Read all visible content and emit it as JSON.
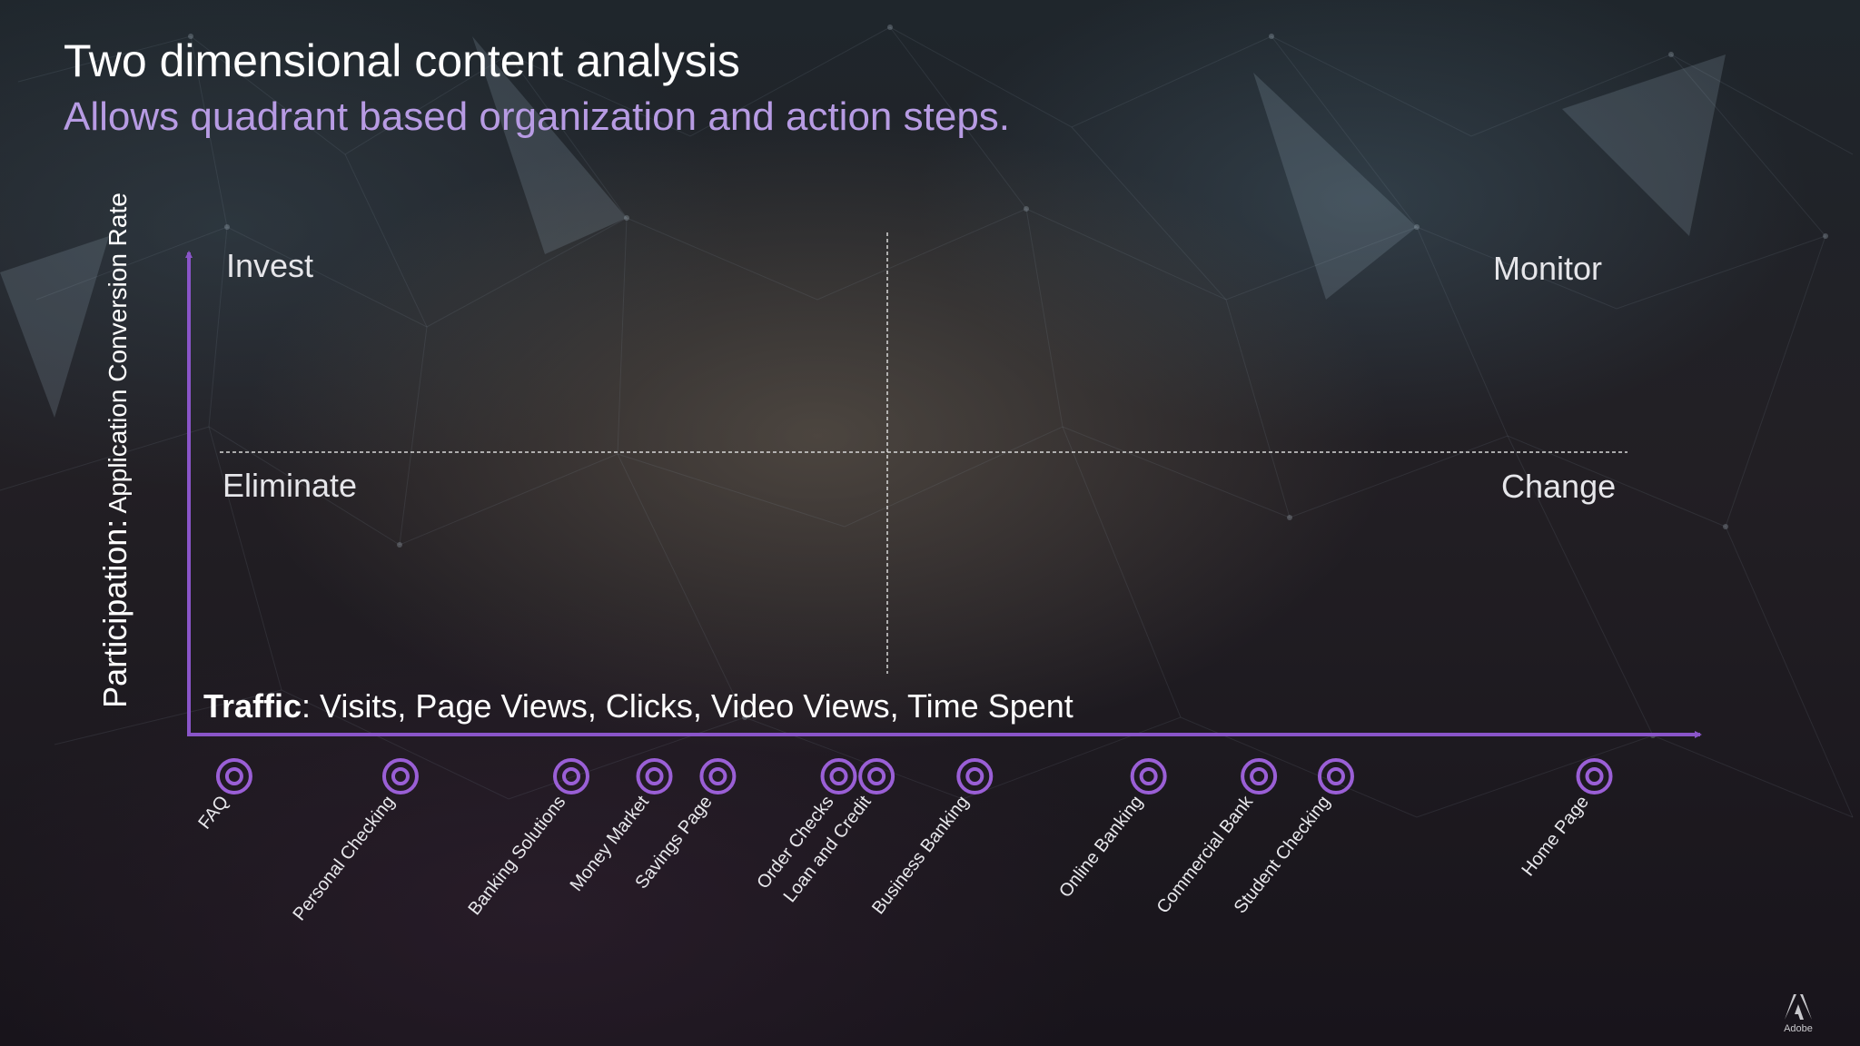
{
  "slide": {
    "title": "Two dimensional content analysis",
    "subtitle": "Allows quadrant based organization and action steps.",
    "logo_text": "Adobe"
  },
  "chart_data": {
    "type": "scatter",
    "ylabel_bold": "Participation:",
    "ylabel_rest": " Application Conversion Rate",
    "xlabel_bold": "Traffic",
    "xlabel_rest": ": Visits, Page Views, Clicks, Video Views, Time Spent",
    "quadrants": {
      "top_left": "Invest",
      "top_right": "Monitor",
      "bottom_left": "Eliminate",
      "bottom_right": "Change"
    },
    "categories": [
      "FAQ",
      "Personal Checking",
      "Banking Solutions",
      "Money Market",
      "Savings Page",
      "Order Checks",
      "Loan and Credit",
      "Business Banking",
      "Online Banking",
      "Commercial Bank",
      "Student Checking",
      "Home Page"
    ],
    "x": [
      0.03,
      0.14,
      0.253,
      0.308,
      0.35,
      0.43,
      0.455,
      0.52,
      0.635,
      0.708,
      0.759,
      0.93
    ],
    "xlim": [
      0,
      1
    ],
    "grid": false,
    "colors": {
      "axis": "#8a55c9",
      "marker": "#9a5fd6",
      "divider": "#d8d8d8"
    }
  }
}
